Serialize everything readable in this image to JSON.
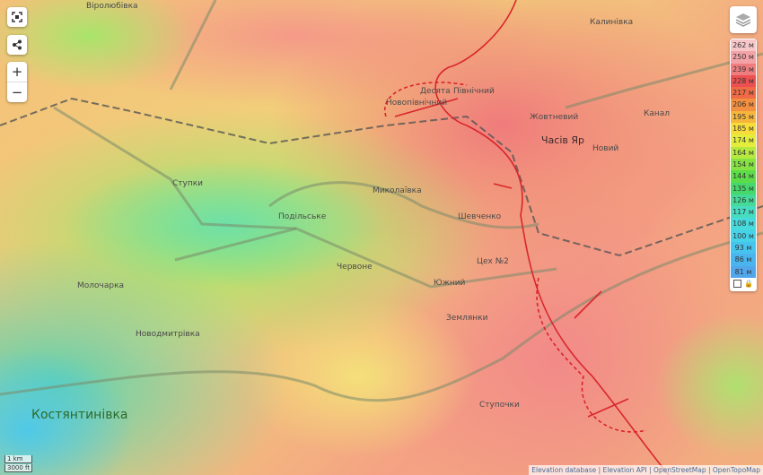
{
  "controls": {
    "fullscreen_icon": "fullscreen-icon",
    "share_icon": "share-icon",
    "zoom_in": "+",
    "zoom_out": "−"
  },
  "places": {
    "virolyubivka": "Віролюбівка",
    "kalynivka": "Калинівка",
    "desiata": "Десята",
    "pivnichnyi": "Північний",
    "novopivnichnyi": "Новопівнічний",
    "zhovtnevyi": "Жовтневий",
    "chasiv_yar": "Часів Яр",
    "kanal": "Канал",
    "novyi": "Новий",
    "stupky": "Ступки",
    "mykolaivka": "Миколаївка",
    "podilske": "Подільське",
    "shevchenko": "Шевченко",
    "chervone": "Червоне",
    "tsekh2": "Цех №2",
    "yuzhnyi": "Южний",
    "zemlianky": "Землянки",
    "molocharka": "Молочарка",
    "novodmytrivka": "Новодмитрівка",
    "stupochky": "Ступочки",
    "kostiantynivka": "Костянтинівка"
  },
  "legend": {
    "layers_icon": "layers-icon",
    "items": [
      {
        "label": "262 м",
        "color": "#f6c6c9"
      },
      {
        "label": "250 м",
        "color": "#f3a3a8"
      },
      {
        "label": "239 м",
        "color": "#ef7d80"
      },
      {
        "label": "228 м",
        "color": "#ec5050"
      },
      {
        "label": "217 м",
        "color": "#f06a45"
      },
      {
        "label": "206 м",
        "color": "#f39040"
      },
      {
        "label": "195 м",
        "color": "#f6b63c"
      },
      {
        "label": "185 м",
        "color": "#f7dc3a"
      },
      {
        "label": "174 м",
        "color": "#e4ec3c"
      },
      {
        "label": "164 м",
        "color": "#b6e83e"
      },
      {
        "label": "154 м",
        "color": "#86e242"
      },
      {
        "label": "144 м",
        "color": "#5cdc48"
      },
      {
        "label": "135 м",
        "color": "#46d86a"
      },
      {
        "label": "126 м",
        "color": "#46da98"
      },
      {
        "label": "117 м",
        "color": "#46dcc0"
      },
      {
        "label": "108 м",
        "color": "#46dadc"
      },
      {
        "label": "100 м",
        "color": "#46d2e8"
      },
      {
        "label": "93 м",
        "color": "#46c4ee"
      },
      {
        "label": "86 м",
        "color": "#4ab4ee"
      },
      {
        "label": "81 м",
        "color": "#52a6ec"
      }
    ]
  },
  "scale": {
    "metric": "1 km",
    "imperial": "3000 ft"
  },
  "attribution": [
    "Elevation database",
    "Elevation API",
    "OpenStreetMap",
    "OpenTopoMap"
  ],
  "colors": {
    "front_line": "#d9262c"
  }
}
